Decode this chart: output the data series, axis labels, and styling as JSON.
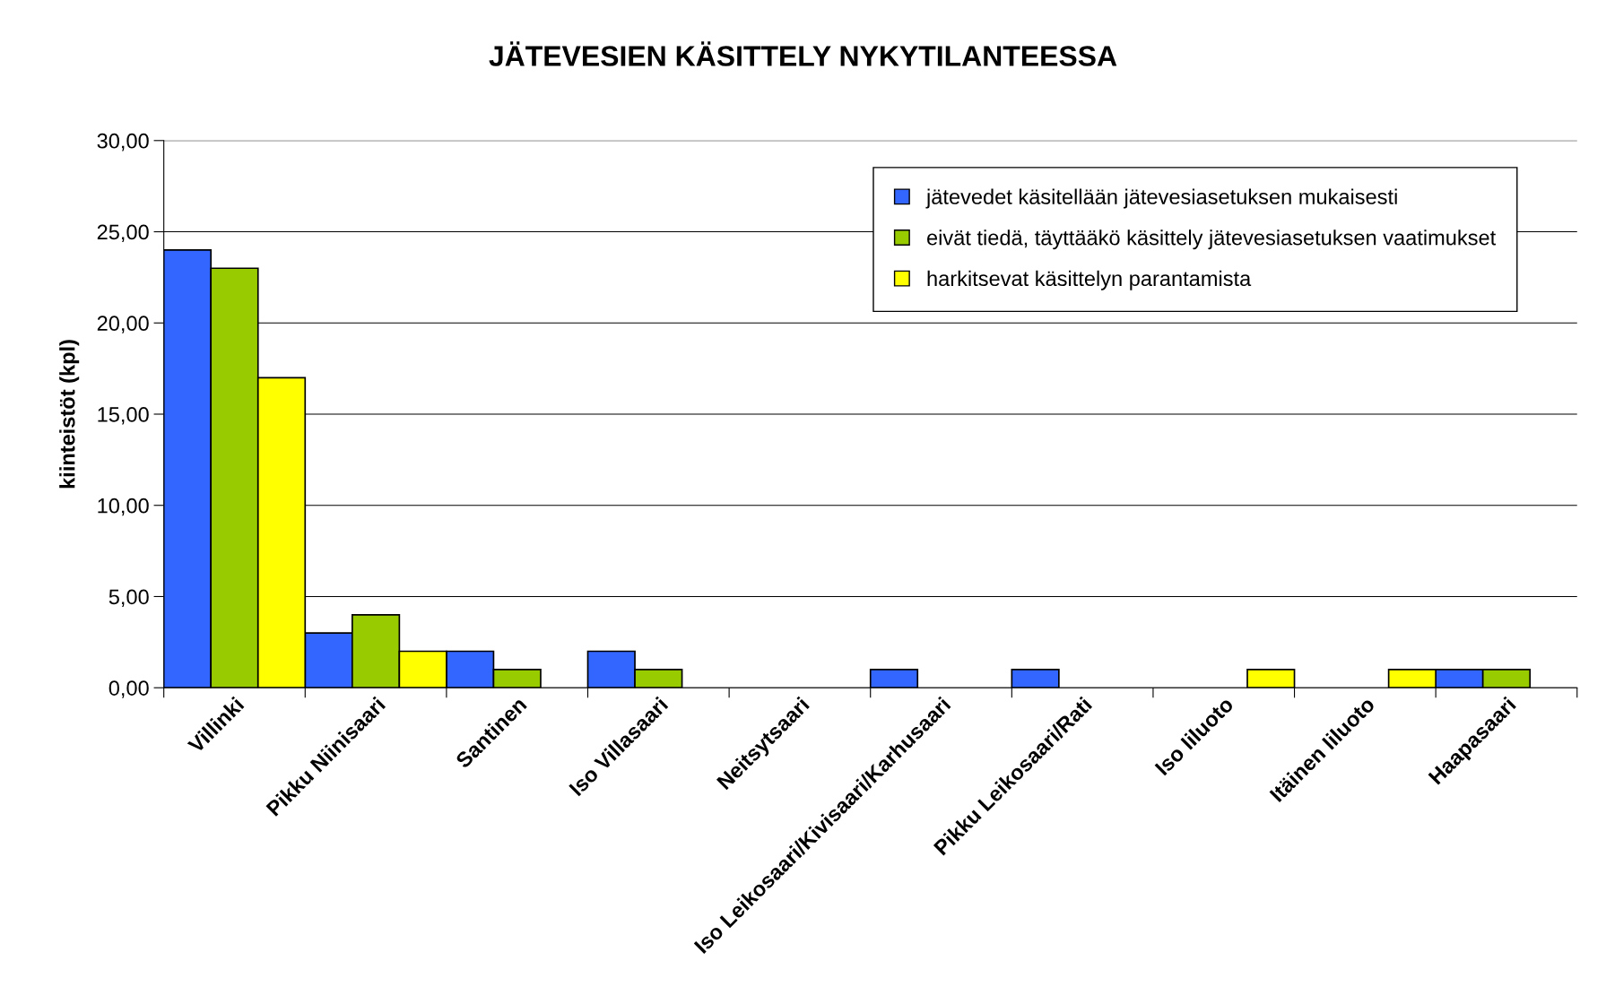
{
  "chart_data": {
    "type": "bar",
    "title": "JÄTEVESIEN KÄSITTELY NYKYTILANTEESSA",
    "ylabel": "kiinteistöt (kpl)",
    "categories": [
      "Villinki",
      "Pikku Niinisaari",
      "Santinen",
      "Iso Villasaari",
      "Neitsytsaari",
      "Iso Leikosaari/Kivisaari/Karhusaari",
      "Pikku Leikosaari/Rati",
      "Iso Iiluoto",
      "Itäinen Iiluoto",
      "Haapasaari"
    ],
    "series": [
      {
        "name": "jätevedet käsitellään jätevesiasetuksen mukaisesti",
        "color": "#3366ff",
        "values": [
          24,
          3,
          2,
          2,
          null,
          1,
          1,
          null,
          null,
          1
        ]
      },
      {
        "name": "eivät tiedä, täyttääkö käsittely jätevesiasetuksen vaatimukset",
        "color": "#99cc00",
        "values": [
          23,
          4,
          1,
          1,
          null,
          null,
          null,
          null,
          null,
          1
        ]
      },
      {
        "name": "harkitsevat käsittelyn parantamista",
        "color": "#ffff00",
        "values": [
          17,
          2,
          null,
          null,
          null,
          null,
          null,
          1,
          1,
          null
        ]
      }
    ],
    "ylim": [
      0,
      30
    ],
    "yticks": [
      {
        "value": 0,
        "label": "0,00"
      },
      {
        "value": 5,
        "label": "5,00"
      },
      {
        "value": 10,
        "label": "10,00"
      },
      {
        "value": 15,
        "label": "15,00"
      },
      {
        "value": 20,
        "label": "20,00"
      },
      {
        "value": 25,
        "label": "25,00"
      },
      {
        "value": 30,
        "label": "30,00"
      }
    ],
    "grid": "y",
    "legend": "top right"
  }
}
